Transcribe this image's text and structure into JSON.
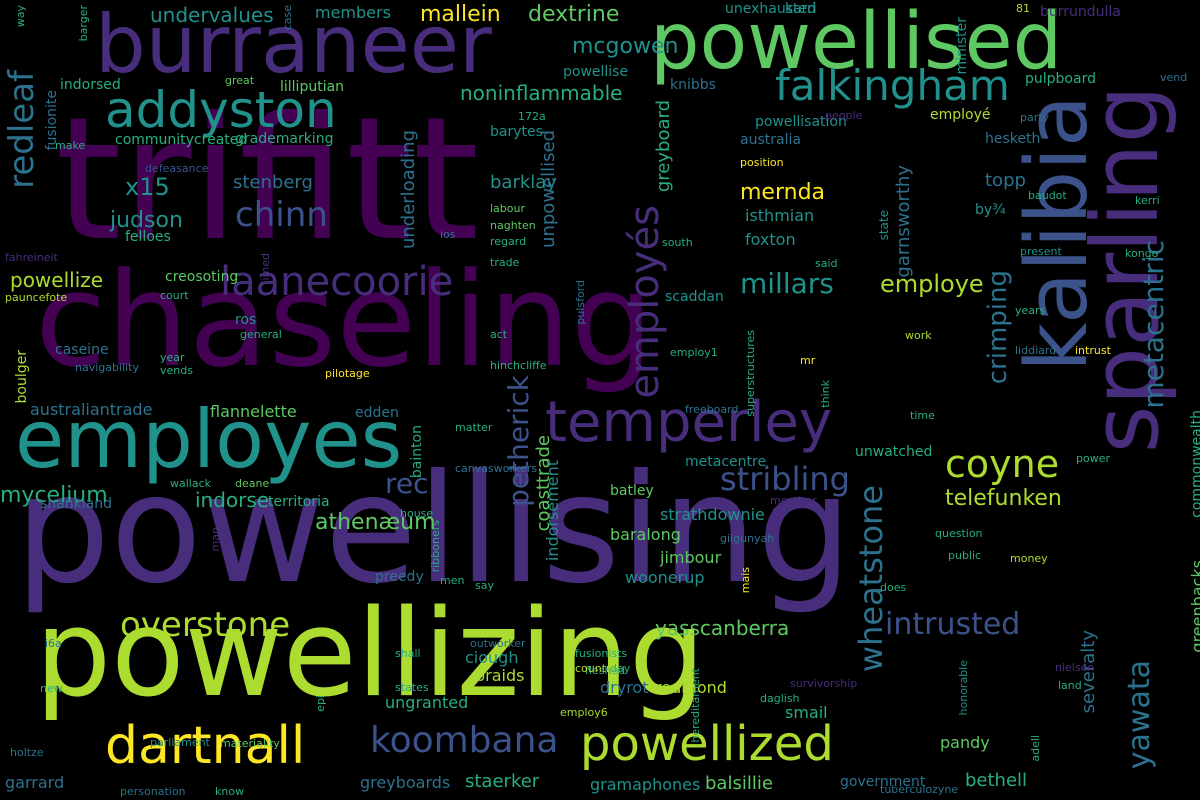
{
  "palette": {
    "c1": "#440154",
    "c2": "#472d7b",
    "c3": "#3b528b",
    "c4": "#2c728e",
    "c5": "#21918c",
    "c6": "#28ae80",
    "c7": "#5ec962",
    "c8": "#addc30",
    "c9": "#fde725"
  },
  "words": [
    {
      "text": "trifitt",
      "color": "c1"
    },
    {
      "text": "powellising",
      "color": "c2"
    },
    {
      "text": "chaseling",
      "color": "c1"
    },
    {
      "text": "powellizing",
      "color": "c8"
    },
    {
      "text": "burraneer",
      "color": "c2"
    },
    {
      "text": "powellised",
      "color": "c7"
    },
    {
      "text": "kalibia",
      "color": "c3"
    },
    {
      "text": "sparling",
      "color": "c2"
    },
    {
      "text": "employes",
      "color": "c5"
    },
    {
      "text": "temperley",
      "color": "c2"
    },
    {
      "text": "addyston",
      "color": "c5"
    },
    {
      "text": "falkingham",
      "color": "c5"
    },
    {
      "text": "dartnall",
      "color": "c9"
    },
    {
      "text": "powellized",
      "color": "c8"
    },
    {
      "text": "koombana",
      "color": "c3"
    },
    {
      "text": "laanecoorie",
      "color": "c2"
    },
    {
      "text": "overstone",
      "color": "c8"
    },
    {
      "text": "redleaf",
      "color": "c4"
    },
    {
      "text": "employés",
      "color": "c2"
    },
    {
      "text": "chinn",
      "color": "c3"
    },
    {
      "text": "coyne",
      "color": "c8"
    },
    {
      "text": "stribling",
      "color": "c3"
    },
    {
      "text": "intrusted",
      "color": "c3"
    },
    {
      "text": "wheatstone",
      "color": "c4"
    },
    {
      "text": "yawata",
      "color": "c4"
    },
    {
      "text": "metacentric",
      "color": "c4"
    },
    {
      "text": "crimping",
      "color": "c4"
    },
    {
      "text": "millars",
      "color": "c5"
    },
    {
      "text": "petherick",
      "color": "c3"
    },
    {
      "text": "rec",
      "color": "c3"
    },
    {
      "text": "employe",
      "color": "c8"
    },
    {
      "text": "x15",
      "color": "c5"
    },
    {
      "text": "mernda",
      "color": "c9"
    },
    {
      "text": "judson",
      "color": "c5"
    },
    {
      "text": "telefunken",
      "color": "c8"
    },
    {
      "text": "mycelium",
      "color": "c6"
    },
    {
      "text": "athenæum",
      "color": "c7"
    },
    {
      "text": "mallein",
      "color": "c9"
    },
    {
      "text": "dextrine",
      "color": "c7"
    },
    {
      "text": "undervalues",
      "color": "c5"
    },
    {
      "text": "mcgowen",
      "color": "c5"
    },
    {
      "text": "noninflammable",
      "color": "c6"
    },
    {
      "text": "yasscanberra",
      "color": "c7"
    },
    {
      "text": "powellize",
      "color": "c8"
    },
    {
      "text": "stenberg",
      "color": "c4"
    },
    {
      "text": "barklay",
      "color": "c5"
    },
    {
      "text": "greyboard",
      "color": "c6"
    },
    {
      "text": "garnsworthy",
      "color": "c4"
    },
    {
      "text": "topp",
      "color": "c4"
    },
    {
      "text": "isthmian",
      "color": "c5"
    },
    {
      "text": "foxton",
      "color": "c5"
    },
    {
      "text": "underloading",
      "color": "c4"
    },
    {
      "text": "unpowellised",
      "color": "c4"
    },
    {
      "text": "indorse",
      "color": "c6"
    },
    {
      "text": "coasttrade",
      "color": "c7"
    },
    {
      "text": "indorsement",
      "color": "c5"
    },
    {
      "text": "flannelette",
      "color": "c7"
    },
    {
      "text": "australiantrade",
      "color": "c4"
    },
    {
      "text": "staerker",
      "color": "c6"
    },
    {
      "text": "balsillie",
      "color": "c7"
    },
    {
      "text": "bethell",
      "color": "c6"
    },
    {
      "text": "severalty",
      "color": "c4"
    },
    {
      "text": "strathdownie",
      "color": "c5"
    },
    {
      "text": "baralong",
      "color": "c7"
    },
    {
      "text": "jimbour",
      "color": "c7"
    },
    {
      "text": "woonerup",
      "color": "c5"
    },
    {
      "text": "dryrot",
      "color": "c4"
    },
    {
      "text": "redmond",
      "color": "c8"
    },
    {
      "text": "braids",
      "color": "c8"
    },
    {
      "text": "ciough",
      "color": "c5"
    },
    {
      "text": "ungranted",
      "color": "c6"
    },
    {
      "text": "smail",
      "color": "c6"
    },
    {
      "text": "pandy",
      "color": "c7"
    },
    {
      "text": "greenbacks",
      "color": "c7"
    },
    {
      "text": "commonwealth",
      "color": "c6"
    },
    {
      "text": "gramaphones",
      "color": "c5"
    },
    {
      "text": "greyboards",
      "color": "c4"
    },
    {
      "text": "garrard",
      "color": "c4"
    },
    {
      "text": "government",
      "color": "c4"
    },
    {
      "text": "shankland",
      "color": "c4"
    },
    {
      "text": "territoria",
      "color": "c6"
    },
    {
      "text": "preedy",
      "color": "c4"
    },
    {
      "text": "batley",
      "color": "c7"
    },
    {
      "text": "metacentre",
      "color": "c5"
    },
    {
      "text": "unwatched",
      "color": "c6"
    },
    {
      "text": "scaddan",
      "color": "c5"
    },
    {
      "text": "bainton",
      "color": "c6"
    },
    {
      "text": "creosoting",
      "color": "c7"
    },
    {
      "text": "ros",
      "color": "c5"
    },
    {
      "text": "felloes",
      "color": "c6"
    },
    {
      "text": "caseine",
      "color": "c4"
    },
    {
      "text": "edden",
      "color": "c4"
    },
    {
      "text": "members",
      "color": "c5"
    },
    {
      "text": "lilliputian",
      "color": "c7"
    },
    {
      "text": "grademarking",
      "color": "c6"
    },
    {
      "text": "communitycreated",
      "color": "c6"
    },
    {
      "text": "indorsed",
      "color": "c6"
    },
    {
      "text": "fusionite",
      "color": "c4"
    },
    {
      "text": "powellise",
      "color": "c5"
    },
    {
      "text": "knibbs",
      "color": "c4"
    },
    {
      "text": "barytes",
      "color": "c5"
    },
    {
      "text": "australia",
      "color": "c4"
    },
    {
      "text": "powellisation",
      "color": "c5"
    },
    {
      "text": "employé",
      "color": "c8"
    },
    {
      "text": "hesketh",
      "color": "c4"
    },
    {
      "text": "pulpboard",
      "color": "c6"
    },
    {
      "text": "burrundulla",
      "color": "c2"
    },
    {
      "text": "unexhausted",
      "color": "c5"
    },
    {
      "text": "karri",
      "color": "c5"
    },
    {
      "text": "minister",
      "color": "c5"
    },
    {
      "text": "by¾",
      "color": "c5"
    },
    {
      "text": "state",
      "color": "c5"
    },
    {
      "text": "kongo",
      "color": "c6"
    },
    {
      "text": "intrust",
      "color": "c9"
    },
    {
      "text": "liddiard",
      "color": "c4"
    },
    {
      "text": "boulger",
      "color": "c8"
    },
    {
      "text": "fahreineit",
      "color": "c2"
    },
    {
      "text": "pauncefote",
      "color": "c8"
    },
    {
      "text": "navigability",
      "color": "c4"
    },
    {
      "text": "pilotage",
      "color": "c9"
    },
    {
      "text": "hinchcliffe",
      "color": "c6"
    },
    {
      "text": "pulsford",
      "color": "c4"
    },
    {
      "text": "superstructures",
      "color": "c6"
    },
    {
      "text": "employ1",
      "color": "c6"
    },
    {
      "text": "freeboard",
      "color": "c4"
    },
    {
      "text": "canvasworkers",
      "color": "c4"
    },
    {
      "text": "wallack",
      "color": "c6"
    },
    {
      "text": "deane",
      "color": "c7"
    },
    {
      "text": "house",
      "color": "c6"
    },
    {
      "text": "ribboners",
      "color": "c6"
    },
    {
      "text": "gilgunyah",
      "color": "c4"
    },
    {
      "text": "question",
      "color": "c6"
    },
    {
      "text": "public",
      "color": "c6"
    },
    {
      "text": "money",
      "color": "c8"
    },
    {
      "text": "power",
      "color": "c6"
    },
    {
      "text": "hereditament",
      "color": "c6"
    },
    {
      "text": "survivorship",
      "color": "c2"
    },
    {
      "text": "daglish",
      "color": "c6"
    },
    {
      "text": "outworker",
      "color": "c4"
    },
    {
      "text": "fleshed",
      "color": "c6"
    },
    {
      "text": "fusionists",
      "color": "c6"
    },
    {
      "text": "country",
      "color": "c8"
    },
    {
      "text": "day",
      "color": "c6"
    },
    {
      "text": "shall",
      "color": "c6"
    },
    {
      "text": "states",
      "color": "c6"
    },
    {
      "text": "employ6",
      "color": "c8"
    },
    {
      "text": "materiality",
      "color": "c7"
    },
    {
      "text": "parliament",
      "color": "c5"
    },
    {
      "text": "know",
      "color": "c6"
    },
    {
      "text": "personation",
      "color": "c4"
    },
    {
      "text": "tuberculozyne",
      "color": "c4"
    },
    {
      "text": "adell",
      "color": "c6"
    },
    {
      "text": "honorable",
      "color": "c5"
    },
    {
      "text": "nielsen",
      "color": "c2"
    },
    {
      "text": "land",
      "color": "c6"
    },
    {
      "text": "new",
      "color": "c6"
    },
    {
      "text": "epi",
      "color": "c6"
    },
    {
      "text": "holtze",
      "color": "c4"
    },
    {
      "text": "i6a",
      "color": "c4"
    },
    {
      "text": "defeasance",
      "color": "c3"
    },
    {
      "text": "172a",
      "color": "c6"
    },
    {
      "text": "81",
      "color": "c8"
    },
    {
      "text": "way",
      "color": "c6"
    },
    {
      "text": "case",
      "color": "c4"
    },
    {
      "text": "barger",
      "color": "c6"
    },
    {
      "text": "great",
      "color": "c7"
    },
    {
      "text": "vend",
      "color": "c4"
    },
    {
      "text": "party",
      "color": "c4"
    },
    {
      "text": "people",
      "color": "c2"
    },
    {
      "text": "make",
      "color": "c6"
    },
    {
      "text": "position",
      "color": "c9"
    },
    {
      "text": "labour",
      "color": "c7"
    },
    {
      "text": "naghten",
      "color": "c7"
    },
    {
      "text": "regard",
      "color": "c6"
    },
    {
      "text": "ios",
      "color": "c4"
    },
    {
      "text": "south",
      "color": "c6"
    },
    {
      "text": "trade",
      "color": "c6"
    },
    {
      "text": "limed",
      "color": "c2"
    },
    {
      "text": "baudot",
      "color": "c6"
    },
    {
      "text": "kerri",
      "color": "c6"
    },
    {
      "text": "present",
      "color": "c5"
    },
    {
      "text": "said",
      "color": "c6"
    },
    {
      "text": "court",
      "color": "c6"
    },
    {
      "text": "general",
      "color": "c6"
    },
    {
      "text": "act",
      "color": "c6"
    },
    {
      "text": "work",
      "color": "c8"
    },
    {
      "text": "years",
      "color": "c6"
    },
    {
      "text": "year",
      "color": "c6"
    },
    {
      "text": "vends",
      "color": "c6"
    },
    {
      "text": "mr",
      "color": "c9"
    },
    {
      "text": "think",
      "color": "c6"
    },
    {
      "text": "time",
      "color": "c6"
    },
    {
      "text": "matter",
      "color": "c6"
    },
    {
      "text": "member",
      "color": "c2"
    },
    {
      "text": "behr",
      "color": "c2"
    },
    {
      "text": "men",
      "color": "c6"
    },
    {
      "text": "say",
      "color": "c6"
    },
    {
      "text": "mais",
      "color": "c9"
    },
    {
      "text": "does",
      "color": "c6"
    },
    {
      "text": "man",
      "color": "c2"
    }
  ]
}
